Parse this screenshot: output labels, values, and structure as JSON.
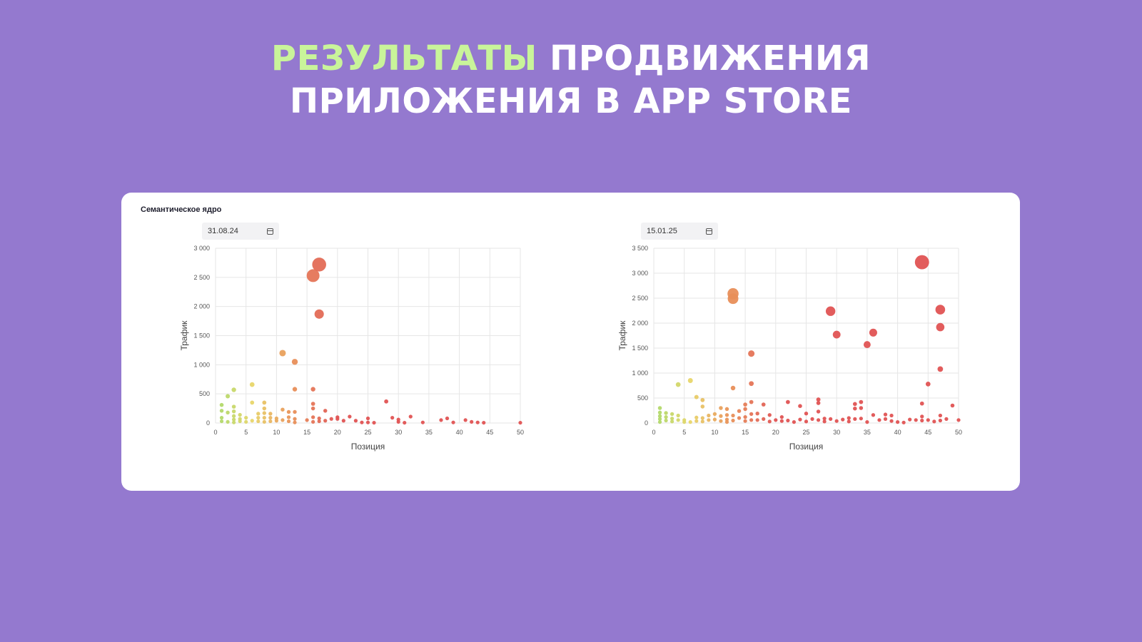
{
  "headline": {
    "accent": "РЕЗУЛЬТАТЫ",
    "line1_rest": "ПРОДВИЖЕНИЯ",
    "line2": "ПРИЛОЖЕНИЯ В APP STORE"
  },
  "card": {
    "title": "Семантическое ядро"
  },
  "colors": {
    "background": "#9479cf",
    "accent_text": "#c9f49a",
    "green": "#a8d96a",
    "yellow": "#e8d66a",
    "orange": "#e9965a",
    "red": "#e05353",
    "grid": "#e6e6e6"
  },
  "chart_data": [
    {
      "type": "scatter",
      "date": "31.08.24",
      "title": "",
      "xlabel": "Позиция",
      "ylabel": "Трафик",
      "xlim": [
        0,
        50
      ],
      "ylim": [
        0,
        3000
      ],
      "x_ticks": [
        0,
        5,
        10,
        15,
        20,
        25,
        30,
        35,
        40,
        45,
        50
      ],
      "y_ticks": [
        0,
        500,
        1000,
        1500,
        2000,
        2500,
        3000
      ],
      "y_tick_labels": [
        "0",
        "500",
        "1 000",
        "1 500",
        "2 000",
        "2 500",
        "3 000"
      ],
      "points": [
        {
          "x": 1,
          "y": 310
        },
        {
          "x": 1,
          "y": 210
        },
        {
          "x": 1,
          "y": 90
        },
        {
          "x": 1,
          "y": 30
        },
        {
          "x": 2,
          "y": 460
        },
        {
          "x": 2,
          "y": 180
        },
        {
          "x": 2,
          "y": 20
        },
        {
          "x": 3,
          "y": 570
        },
        {
          "x": 3,
          "y": 280
        },
        {
          "x": 3,
          "y": 200
        },
        {
          "x": 3,
          "y": 120
        },
        {
          "x": 3,
          "y": 60
        },
        {
          "x": 3,
          "y": 10
        },
        {
          "x": 4,
          "y": 140
        },
        {
          "x": 4,
          "y": 70
        },
        {
          "x": 4,
          "y": 30
        },
        {
          "x": 5,
          "y": 90
        },
        {
          "x": 5,
          "y": 20
        },
        {
          "x": 6,
          "y": 660
        },
        {
          "x": 6,
          "y": 350
        },
        {
          "x": 6,
          "y": 40
        },
        {
          "x": 7,
          "y": 160
        },
        {
          "x": 7,
          "y": 90
        },
        {
          "x": 7,
          "y": 30
        },
        {
          "x": 8,
          "y": 350
        },
        {
          "x": 8,
          "y": 250
        },
        {
          "x": 8,
          "y": 170
        },
        {
          "x": 8,
          "y": 90
        },
        {
          "x": 8,
          "y": 20
        },
        {
          "x": 9,
          "y": 160
        },
        {
          "x": 9,
          "y": 90
        },
        {
          "x": 9,
          "y": 30
        },
        {
          "x": 10,
          "y": 80
        },
        {
          "x": 10,
          "y": 40
        },
        {
          "x": 11,
          "y": 1200
        },
        {
          "x": 11,
          "y": 230
        },
        {
          "x": 11,
          "y": 50
        },
        {
          "x": 12,
          "y": 190
        },
        {
          "x": 12,
          "y": 100
        },
        {
          "x": 12,
          "y": 30
        },
        {
          "x": 13,
          "y": 1050
        },
        {
          "x": 13,
          "y": 580
        },
        {
          "x": 13,
          "y": 190
        },
        {
          "x": 13,
          "y": 70
        },
        {
          "x": 13,
          "y": 10
        },
        {
          "x": 15,
          "y": 50
        },
        {
          "x": 16,
          "y": 2530
        },
        {
          "x": 16,
          "y": 580
        },
        {
          "x": 16,
          "y": 330
        },
        {
          "x": 16,
          "y": 250
        },
        {
          "x": 16,
          "y": 100
        },
        {
          "x": 16,
          "y": 20
        },
        {
          "x": 17,
          "y": 2720
        },
        {
          "x": 17,
          "y": 1870
        },
        {
          "x": 17,
          "y": 80
        },
        {
          "x": 17,
          "y": 30
        },
        {
          "x": 18,
          "y": 210
        },
        {
          "x": 18,
          "y": 40
        },
        {
          "x": 19,
          "y": 70
        },
        {
          "x": 20,
          "y": 100
        },
        {
          "x": 20,
          "y": 70
        },
        {
          "x": 21,
          "y": 40
        },
        {
          "x": 22,
          "y": 110
        },
        {
          "x": 23,
          "y": 40
        },
        {
          "x": 24,
          "y": 10
        },
        {
          "x": 25,
          "y": 80
        },
        {
          "x": 25,
          "y": 10
        },
        {
          "x": 26,
          "y": 5
        },
        {
          "x": 28,
          "y": 370
        },
        {
          "x": 29,
          "y": 90
        },
        {
          "x": 30,
          "y": 60
        },
        {
          "x": 30,
          "y": 20
        },
        {
          "x": 31,
          "y": 5
        },
        {
          "x": 32,
          "y": 110
        },
        {
          "x": 34,
          "y": 10
        },
        {
          "x": 37,
          "y": 50
        },
        {
          "x": 38,
          "y": 80
        },
        {
          "x": 39,
          "y": 10
        },
        {
          "x": 41,
          "y": 50
        },
        {
          "x": 42,
          "y": 20
        },
        {
          "x": 43,
          "y": 10
        },
        {
          "x": 44,
          "y": 5
        },
        {
          "x": 50,
          "y": 5
        }
      ]
    },
    {
      "type": "scatter",
      "date": "15.01.25",
      "title": "",
      "xlabel": "Позиция",
      "ylabel": "Трафик",
      "xlim": [
        0,
        50
      ],
      "ylim": [
        0,
        3500
      ],
      "x_ticks": [
        0,
        5,
        10,
        15,
        20,
        25,
        30,
        35,
        40,
        45,
        50
      ],
      "y_ticks": [
        0,
        500,
        1000,
        1500,
        2000,
        2500,
        3000,
        3500
      ],
      "y_tick_labels": [
        "0",
        "500",
        "1 000",
        "1 500",
        "2 000",
        "2 500",
        "3 000",
        "3 500"
      ],
      "points": [
        {
          "x": 1,
          "y": 300
        },
        {
          "x": 1,
          "y": 210
        },
        {
          "x": 1,
          "y": 140
        },
        {
          "x": 1,
          "y": 80
        },
        {
          "x": 1,
          "y": 20
        },
        {
          "x": 2,
          "y": 200
        },
        {
          "x": 2,
          "y": 120
        },
        {
          "x": 2,
          "y": 50
        },
        {
          "x": 3,
          "y": 180
        },
        {
          "x": 3,
          "y": 90
        },
        {
          "x": 3,
          "y": 30
        },
        {
          "x": 4,
          "y": 770
        },
        {
          "x": 4,
          "y": 150
        },
        {
          "x": 4,
          "y": 60
        },
        {
          "x": 5,
          "y": 60
        },
        {
          "x": 5,
          "y": 20
        },
        {
          "x": 6,
          "y": 850
        },
        {
          "x": 6,
          "y": 20
        },
        {
          "x": 7,
          "y": 520
        },
        {
          "x": 7,
          "y": 110
        },
        {
          "x": 7,
          "y": 40
        },
        {
          "x": 8,
          "y": 460
        },
        {
          "x": 8,
          "y": 330
        },
        {
          "x": 8,
          "y": 100
        },
        {
          "x": 8,
          "y": 30
        },
        {
          "x": 9,
          "y": 150
        },
        {
          "x": 9,
          "y": 60
        },
        {
          "x": 10,
          "y": 180
        },
        {
          "x": 10,
          "y": 70
        },
        {
          "x": 11,
          "y": 300
        },
        {
          "x": 11,
          "y": 140
        },
        {
          "x": 11,
          "y": 40
        },
        {
          "x": 12,
          "y": 280
        },
        {
          "x": 12,
          "y": 160
        },
        {
          "x": 12,
          "y": 70
        },
        {
          "x": 12,
          "y": 20
        },
        {
          "x": 13,
          "y": 2590
        },
        {
          "x": 13,
          "y": 2490
        },
        {
          "x": 13,
          "y": 700
        },
        {
          "x": 13,
          "y": 150
        },
        {
          "x": 13,
          "y": 50
        },
        {
          "x": 14,
          "y": 240
        },
        {
          "x": 14,
          "y": 100
        },
        {
          "x": 15,
          "y": 370
        },
        {
          "x": 15,
          "y": 280
        },
        {
          "x": 15,
          "y": 120
        },
        {
          "x": 15,
          "y": 40
        },
        {
          "x": 16,
          "y": 1390
        },
        {
          "x": 16,
          "y": 790
        },
        {
          "x": 16,
          "y": 420
        },
        {
          "x": 16,
          "y": 180
        },
        {
          "x": 16,
          "y": 60
        },
        {
          "x": 17,
          "y": 190
        },
        {
          "x": 17,
          "y": 60
        },
        {
          "x": 18,
          "y": 370
        },
        {
          "x": 18,
          "y": 80
        },
        {
          "x": 19,
          "y": 160
        },
        {
          "x": 19,
          "y": 30
        },
        {
          "x": 20,
          "y": 60
        },
        {
          "x": 21,
          "y": 120
        },
        {
          "x": 21,
          "y": 40
        },
        {
          "x": 22,
          "y": 420
        },
        {
          "x": 22,
          "y": 50
        },
        {
          "x": 23,
          "y": 20
        },
        {
          "x": 24,
          "y": 340
        },
        {
          "x": 24,
          "y": 70
        },
        {
          "x": 25,
          "y": 190
        },
        {
          "x": 25,
          "y": 30
        },
        {
          "x": 26,
          "y": 80
        },
        {
          "x": 27,
          "y": 470
        },
        {
          "x": 27,
          "y": 400
        },
        {
          "x": 27,
          "y": 230
        },
        {
          "x": 27,
          "y": 60
        },
        {
          "x": 28,
          "y": 90
        },
        {
          "x": 28,
          "y": 30
        },
        {
          "x": 29,
          "y": 2240
        },
        {
          "x": 29,
          "y": 80
        },
        {
          "x": 30,
          "y": 1770
        },
        {
          "x": 30,
          "y": 40
        },
        {
          "x": 31,
          "y": 70
        },
        {
          "x": 32,
          "y": 100
        },
        {
          "x": 32,
          "y": 30
        },
        {
          "x": 33,
          "y": 380
        },
        {
          "x": 33,
          "y": 290
        },
        {
          "x": 33,
          "y": 80
        },
        {
          "x": 34,
          "y": 420
        },
        {
          "x": 34,
          "y": 300
        },
        {
          "x": 34,
          "y": 90
        },
        {
          "x": 35,
          "y": 1570
        },
        {
          "x": 35,
          "y": 20
        },
        {
          "x": 36,
          "y": 1810
        },
        {
          "x": 36,
          "y": 160
        },
        {
          "x": 37,
          "y": 60
        },
        {
          "x": 38,
          "y": 170
        },
        {
          "x": 38,
          "y": 80
        },
        {
          "x": 39,
          "y": 150
        },
        {
          "x": 39,
          "y": 40
        },
        {
          "x": 40,
          "y": 20
        },
        {
          "x": 41,
          "y": 10
        },
        {
          "x": 42,
          "y": 70
        },
        {
          "x": 43,
          "y": 60
        },
        {
          "x": 44,
          "y": 3220
        },
        {
          "x": 44,
          "y": 390
        },
        {
          "x": 44,
          "y": 130
        },
        {
          "x": 44,
          "y": 50
        },
        {
          "x": 45,
          "y": 780
        },
        {
          "x": 45,
          "y": 60
        },
        {
          "x": 46,
          "y": 30
        },
        {
          "x": 47,
          "y": 2270
        },
        {
          "x": 47,
          "y": 1920
        },
        {
          "x": 47,
          "y": 1080
        },
        {
          "x": 47,
          "y": 150
        },
        {
          "x": 47,
          "y": 50
        },
        {
          "x": 48,
          "y": 80
        },
        {
          "x": 49,
          "y": 350
        },
        {
          "x": 50,
          "y": 60
        }
      ]
    }
  ]
}
